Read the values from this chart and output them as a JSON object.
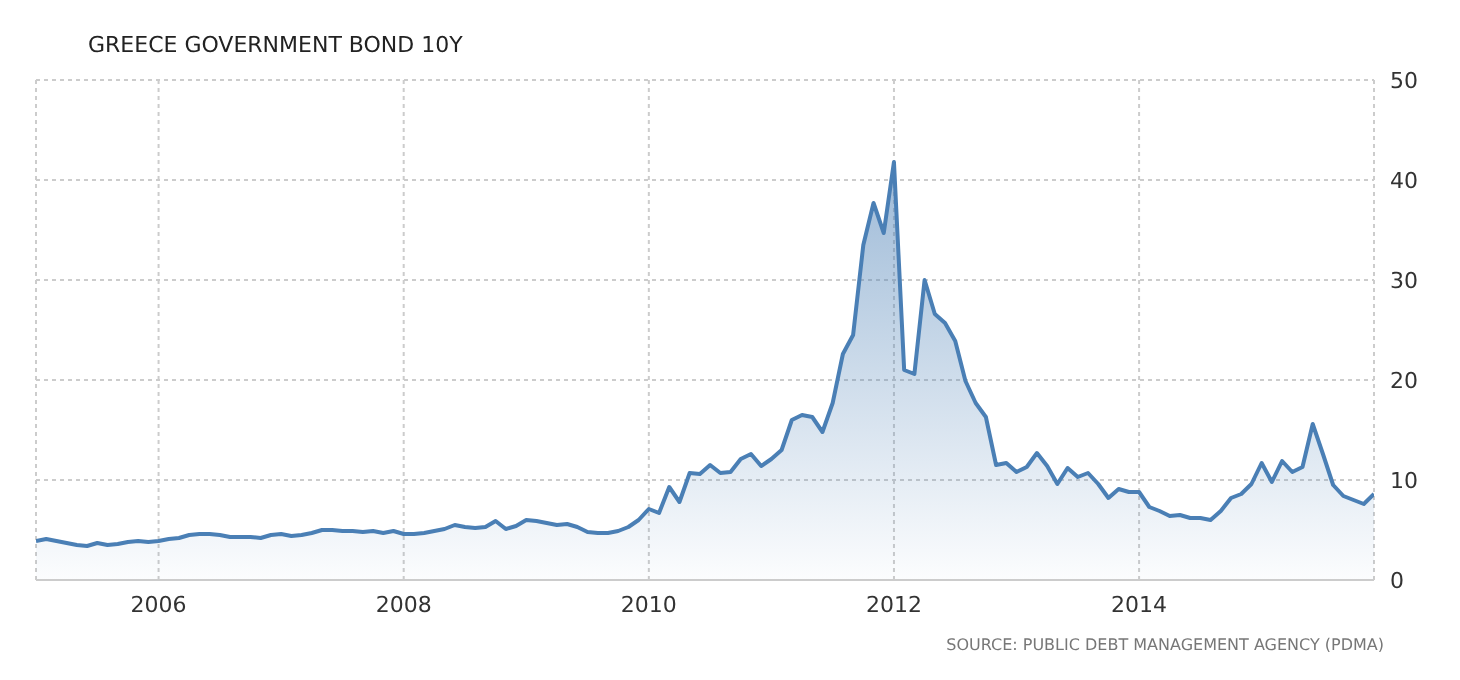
{
  "chart_data": {
    "type": "area",
    "title": "GREECE GOVERNMENT BOND 10Y",
    "annotations": [
      "SOURCE: PUBLIC DEBT MANAGEMENT AGENCY (PDMA)"
    ],
    "x": [
      "2005-01",
      "2005-02",
      "2005-03",
      "2005-04",
      "2005-05",
      "2005-06",
      "2005-07",
      "2005-08",
      "2005-09",
      "2005-10",
      "2005-11",
      "2005-12",
      "2006-01",
      "2006-02",
      "2006-03",
      "2006-04",
      "2006-05",
      "2006-06",
      "2006-07",
      "2006-08",
      "2006-09",
      "2006-10",
      "2006-11",
      "2006-12",
      "2007-01",
      "2007-02",
      "2007-03",
      "2007-04",
      "2007-05",
      "2007-06",
      "2007-07",
      "2007-08",
      "2007-09",
      "2007-10",
      "2007-11",
      "2007-12",
      "2008-01",
      "2008-02",
      "2008-03",
      "2008-04",
      "2008-05",
      "2008-06",
      "2008-07",
      "2008-08",
      "2008-09",
      "2008-10",
      "2008-11",
      "2008-12",
      "2009-01",
      "2009-02",
      "2009-03",
      "2009-04",
      "2009-05",
      "2009-06",
      "2009-07",
      "2009-08",
      "2009-09",
      "2009-10",
      "2009-11",
      "2009-12",
      "2010-01",
      "2010-02",
      "2010-03",
      "2010-04",
      "2010-05",
      "2010-06",
      "2010-07",
      "2010-08",
      "2010-09",
      "2010-10",
      "2010-11",
      "2010-12",
      "2011-01",
      "2011-02",
      "2011-03",
      "2011-04",
      "2011-05",
      "2011-06",
      "2011-07",
      "2011-08",
      "2011-09",
      "2011-10",
      "2011-11",
      "2011-12",
      "2012-01",
      "2012-02",
      "2012-03",
      "2012-04",
      "2012-05",
      "2012-06",
      "2012-07",
      "2012-08",
      "2012-09",
      "2012-10",
      "2012-11",
      "2012-12",
      "2013-01",
      "2013-02",
      "2013-03",
      "2013-04",
      "2013-05",
      "2013-06",
      "2013-07",
      "2013-08",
      "2013-09",
      "2013-10",
      "2013-11",
      "2013-12",
      "2014-01",
      "2014-02",
      "2014-03",
      "2014-04",
      "2014-05",
      "2014-06",
      "2014-07",
      "2014-08",
      "2014-09",
      "2014-10",
      "2014-11",
      "2014-12",
      "2015-01",
      "2015-02",
      "2015-03",
      "2015-04",
      "2015-05",
      "2015-06",
      "2015-07",
      "2015-08",
      "2015-09",
      "2015-10",
      "2015-11",
      "2015-12"
    ],
    "series": [
      {
        "color": "#4a7fb5",
        "values": [
          3.9,
          4.1,
          3.9,
          3.7,
          3.5,
          3.4,
          3.7,
          3.5,
          3.6,
          3.8,
          3.9,
          3.8,
          3.9,
          4.1,
          4.2,
          4.5,
          4.6,
          4.6,
          4.5,
          4.3,
          4.3,
          4.3,
          4.2,
          4.5,
          4.6,
          4.4,
          4.5,
          4.7,
          5.0,
          5.0,
          4.9,
          4.9,
          4.8,
          4.9,
          4.7,
          4.9,
          4.6,
          4.6,
          4.7,
          4.9,
          5.1,
          5.5,
          5.3,
          5.2,
          5.3,
          5.9,
          5.1,
          5.4,
          6.0,
          5.9,
          5.7,
          5.5,
          5.6,
          5.3,
          4.8,
          4.7,
          4.7,
          4.9,
          5.3,
          6.0,
          7.1,
          6.7,
          9.3,
          7.8,
          10.7,
          10.6,
          11.5,
          10.7,
          10.8,
          12.1,
          12.6,
          11.4,
          12.1,
          13.0,
          16.0,
          16.5,
          16.3,
          14.8,
          17.7,
          22.6,
          24.5,
          33.5,
          37.7,
          34.7,
          41.8,
          21.0,
          20.6,
          30.0,
          26.6,
          25.7,
          23.9,
          19.9,
          17.7,
          16.3,
          11.5,
          11.7,
          10.8,
          11.3,
          12.7,
          11.4,
          9.6,
          11.2,
          10.3,
          10.7,
          9.6,
          8.2,
          9.1,
          8.8,
          8.8,
          7.3,
          6.9,
          6.4,
          6.5,
          6.2,
          6.2,
          6.0,
          6.9,
          8.2,
          8.6,
          9.6,
          11.7,
          9.8,
          11.9,
          10.8,
          11.3,
          15.6,
          12.6,
          9.5,
          8.4,
          8.0,
          7.6,
          8.6
        ]
      }
    ],
    "xlim": [
      "2005-01",
      "2015-12"
    ],
    "xticks": [
      "2006",
      "2008",
      "2010",
      "2012",
      "2014"
    ],
    "ylim": [
      0,
      50
    ],
    "yticks": [
      0,
      10,
      20,
      30,
      40,
      50
    ],
    "grid": true
  }
}
